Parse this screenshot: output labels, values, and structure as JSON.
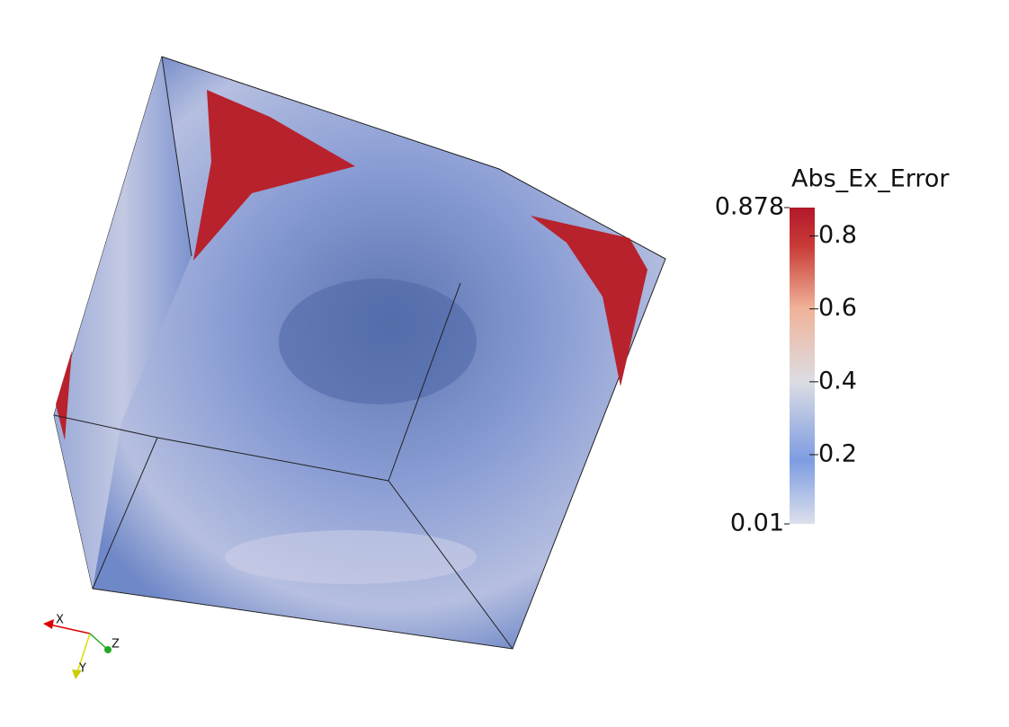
{
  "colorbar": {
    "title": "Abs_Ex_Error",
    "min": 0.01,
    "max": 0.878,
    "ticks": [
      0.2,
      0.4,
      0.6,
      0.8
    ]
  },
  "axes": {
    "x": "X",
    "y": "Y",
    "z": "Z"
  }
}
